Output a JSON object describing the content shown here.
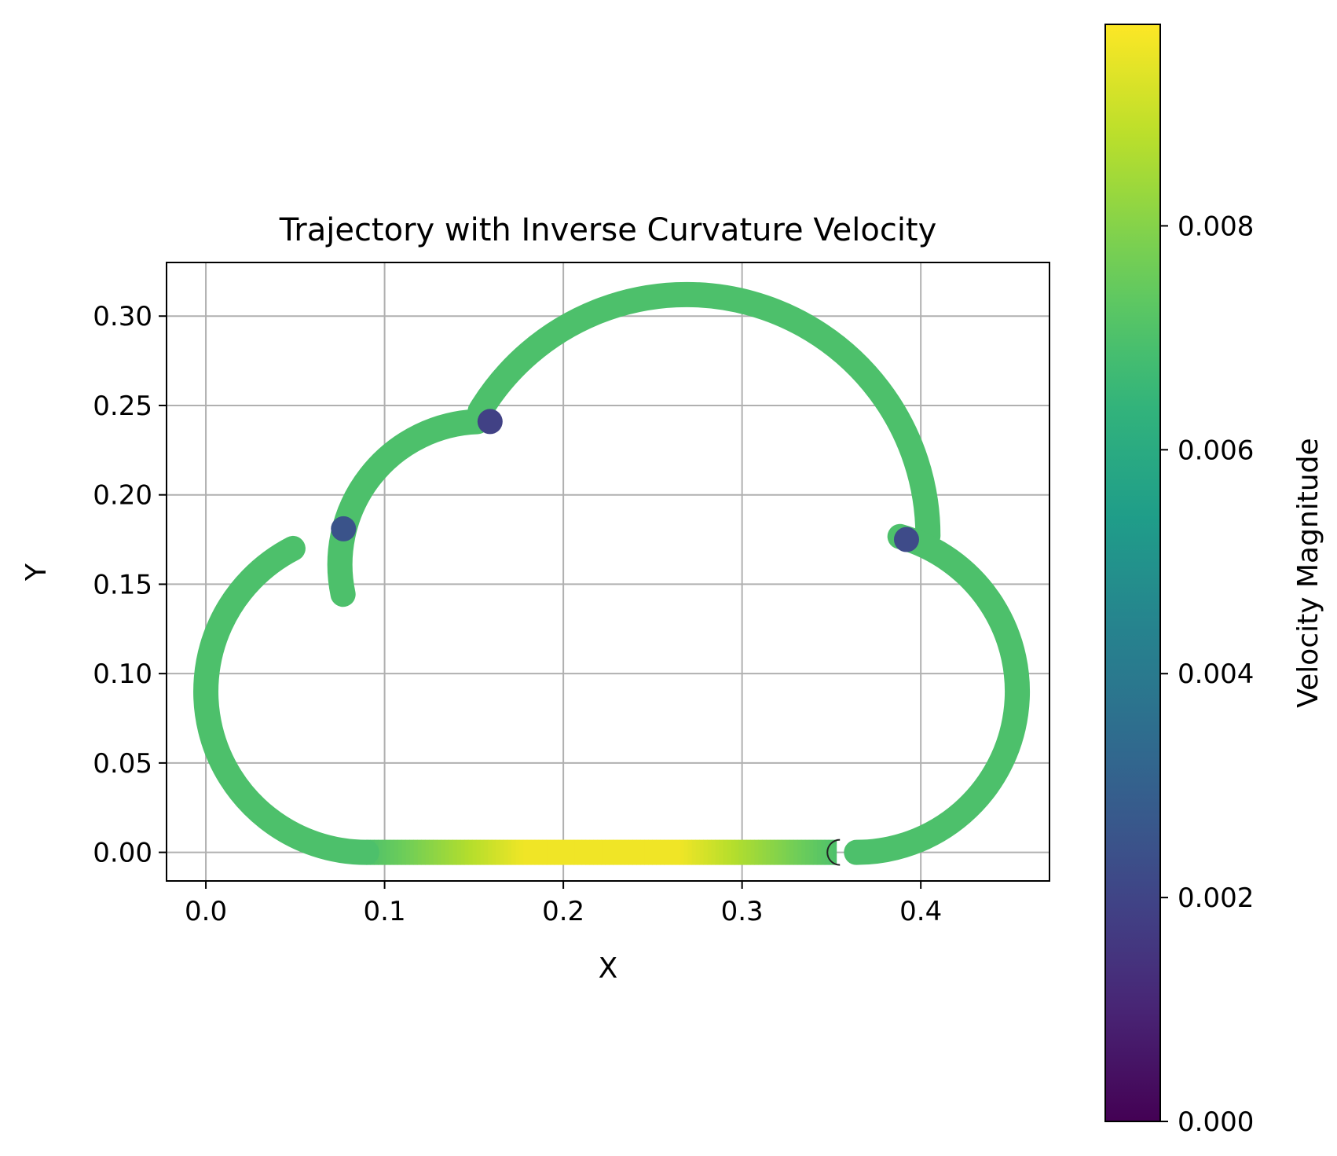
{
  "chart_data": {
    "type": "scatter",
    "title": "Trajectory with Inverse Curvature Velocity",
    "xlabel": "X",
    "ylabel": "Y",
    "xlim": [
      -0.022,
      0.472
    ],
    "ylim": [
      -0.016,
      0.33
    ],
    "xticks": [
      0.0,
      0.1,
      0.2,
      0.3,
      0.4
    ],
    "xtick_labels": [
      "0.0",
      "0.1",
      "0.2",
      "0.3",
      "0.4"
    ],
    "yticks": [
      0.0,
      0.05,
      0.1,
      0.15,
      0.2,
      0.25,
      0.3
    ],
    "ytick_labels": [
      "0.00",
      "0.05",
      "0.10",
      "0.15",
      "0.20",
      "0.25",
      "0.30"
    ],
    "grid": true,
    "aspect": "equal",
    "colormap": "viridis",
    "colorbar": {
      "label": "Velocity Magnitude",
      "range": [
        0.0,
        0.0098
      ],
      "ticks": [
        0.0,
        0.002,
        0.004,
        0.006,
        0.008
      ],
      "tick_labels": [
        "0.000",
        "0.002",
        "0.004",
        "0.006",
        "0.008"
      ]
    },
    "segments": [
      {
        "name": "bottom edge",
        "kind": "line",
        "from": [
          0.353,
          0.0
        ],
        "to": [
          0.09,
          0.0
        ],
        "velocity_profile": [
          0.007,
          0.0096,
          0.0096,
          0.007
        ]
      },
      {
        "name": "left lobe",
        "kind": "arc",
        "center": [
          0.09,
          0.09
        ],
        "radius": 0.09,
        "start_deg": 270,
        "end_deg": 117.3,
        "velocity": 0.007
      },
      {
        "name": "upper-left lobe",
        "kind": "arc",
        "center": [
          0.155,
          0.161
        ],
        "radius": 0.08,
        "start_deg": 192,
        "end_deg": 92.2,
        "velocity": 0.007
      },
      {
        "name": "top lobe",
        "kind": "arc",
        "center": [
          0.269,
          0.177
        ],
        "radius": 0.135,
        "start_deg": 148.8,
        "end_deg": 0,
        "velocity": 0.007
      },
      {
        "name": "right lobe",
        "kind": "arc",
        "center": [
          0.364,
          0.09
        ],
        "radius": 0.09,
        "start_deg": 74.3,
        "end_deg": -90,
        "velocity": 0.007
      }
    ],
    "slow_points": [
      {
        "x": 0.077,
        "y": 0.181,
        "velocity": 0.0025
      },
      {
        "x": 0.159,
        "y": 0.241,
        "velocity": 0.0019
      },
      {
        "x": 0.392,
        "y": 0.175,
        "velocity": 0.0022
      }
    ],
    "start_marker": {
      "x": 0.353,
      "y": 0.0
    }
  }
}
